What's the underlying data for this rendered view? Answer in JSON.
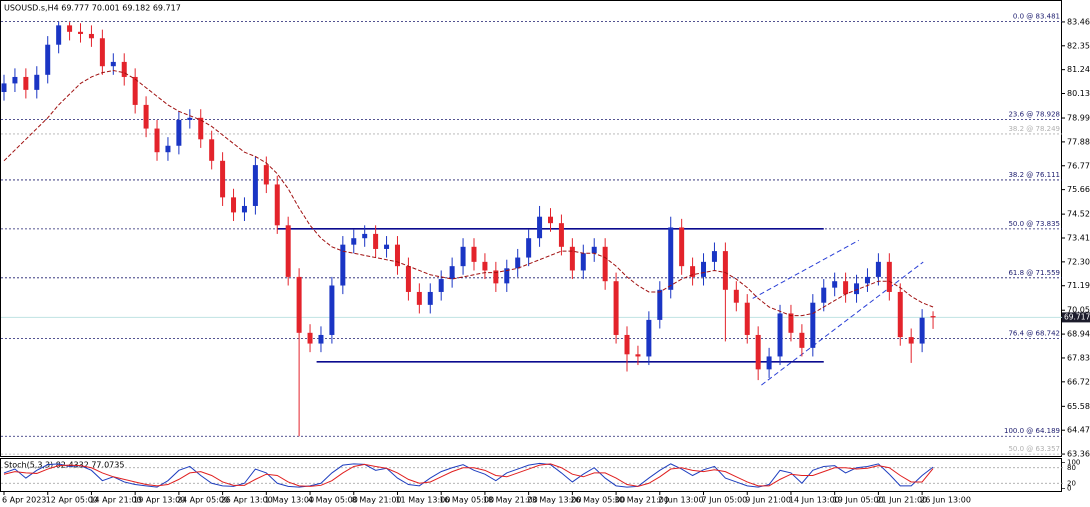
{
  "chart_data": {
    "type": "candlestick",
    "symbol_info": "USOUSD.s,H4  69.777 70.001 69.182 69.717",
    "categories": [
      "6 Apr 2023",
      null,
      null,
      null,
      "12 Apr 05:00",
      null,
      null,
      null,
      "14 Apr 21:00",
      null,
      null,
      null,
      "19 Apr 13:00",
      null,
      null,
      null,
      "24 Apr 05:00",
      null,
      null,
      null,
      "26 Apr 13:00",
      null,
      null,
      null,
      "1 May 13:00",
      null,
      null,
      null,
      "4 May 05:00",
      null,
      null,
      null,
      "8 May 21:00",
      null,
      null,
      null,
      "11 May 13:00",
      null,
      null,
      null,
      "16 May 05:00",
      null,
      null,
      null,
      "18 May 21:00",
      null,
      null,
      null,
      "23 May 13:00",
      null,
      null,
      null,
      "26 May 05:00",
      null,
      null,
      null,
      "30 May 21:00",
      null,
      null,
      null,
      "2 Jun 13:00",
      null,
      null,
      null,
      "7 Jun 05:00",
      null,
      null,
      null,
      "9 Jun 21:00",
      null,
      null,
      null,
      "14 Jun 13:00",
      null,
      null,
      null,
      "19 Jun 05:00",
      null,
      null,
      null,
      "21 Jun 21:00",
      null,
      null,
      null,
      "26 Jun 13:00",
      null
    ],
    "open": [
      80.2,
      80.6,
      80.9,
      80.3,
      81.0,
      82.4,
      83.3,
      83.0,
      82.9,
      82.7,
      81.4,
      81.6,
      80.9,
      79.6,
      78.5,
      77.4,
      77.7,
      78.9,
      79.0,
      78.0,
      77.0,
      75.3,
      74.6,
      74.9,
      76.8,
      75.9,
      74.0,
      71.6,
      69.0,
      68.5,
      68.9,
      71.2,
      73.1,
      73.4,
      73.6,
      72.9,
      73.1,
      72.1,
      70.9,
      70.3,
      70.9,
      71.5,
      72.1,
      73.0,
      72.3,
      71.9,
      71.3,
      72.0,
      72.5,
      73.4,
      74.4,
      74.1,
      73.0,
      71.9,
      72.7,
      73.0,
      71.4,
      68.9,
      68.0,
      67.9,
      69.6,
      71.0,
      73.9,
      72.1,
      71.6,
      72.3,
      72.8,
      71.0,
      70.4,
      68.9,
      67.3,
      67.9,
      69.9,
      69.0,
      68.3,
      70.4,
      71.1,
      71.4,
      70.8,
      71.3,
      71.6,
      72.3,
      70.9,
      68.8,
      68.5,
      69.777
    ],
    "high": [
      81.0,
      81.3,
      81.3,
      81.4,
      82.8,
      83.481,
      83.45,
      83.4,
      83.3,
      83.1,
      82.0,
      82.0,
      81.3,
      80.0,
      78.9,
      78.1,
      79.3,
      79.4,
      79.4,
      78.4,
      77.4,
      75.7,
      75.3,
      77.2,
      77.2,
      76.3,
      74.4,
      72.0,
      69.4,
      69.3,
      71.6,
      73.5,
      73.8,
      74.0,
      74.0,
      73.5,
      73.5,
      72.5,
      71.3,
      71.3,
      71.9,
      72.5,
      73.4,
      73.4,
      72.7,
      72.3,
      72.4,
      72.9,
      73.8,
      74.9,
      74.8,
      74.5,
      73.4,
      73.1,
      73.4,
      73.4,
      71.8,
      69.3,
      68.4,
      70.0,
      71.4,
      74.4,
      74.3,
      72.5,
      72.7,
      73.2,
      73.2,
      71.4,
      70.8,
      69.3,
      68.3,
      70.3,
      70.3,
      69.4,
      70.8,
      71.5,
      71.8,
      71.8,
      71.7,
      72.0,
      72.7,
      72.7,
      71.3,
      69.2,
      70.1,
      70.001
    ],
    "low": [
      79.8,
      80.2,
      79.9,
      79.9,
      80.6,
      82.0,
      82.6,
      82.5,
      82.3,
      81.0,
      81.0,
      80.5,
      79.2,
      78.1,
      77.0,
      77.0,
      77.3,
      78.5,
      77.6,
      76.6,
      74.9,
      74.2,
      74.2,
      74.5,
      75.5,
      73.6,
      71.2,
      64.189,
      68.1,
      68.1,
      68.5,
      70.8,
      72.7,
      73.0,
      72.5,
      72.5,
      71.7,
      70.5,
      69.9,
      69.9,
      70.5,
      71.1,
      71.7,
      71.9,
      71.5,
      70.9,
      70.9,
      71.6,
      72.1,
      73.0,
      73.7,
      72.6,
      71.5,
      71.5,
      72.3,
      71.0,
      68.5,
      67.2,
      67.5,
      67.5,
      69.2,
      70.6,
      71.7,
      71.2,
      71.2,
      71.9,
      68.6,
      70.0,
      68.5,
      66.8,
      66.9,
      67.5,
      68.6,
      67.9,
      67.9,
      70.0,
      70.7,
      70.4,
      70.4,
      70.9,
      71.2,
      70.5,
      68.4,
      67.6,
      68.1,
      69.182
    ],
    "close": [
      80.6,
      80.9,
      80.3,
      81.0,
      82.4,
      83.3,
      83.0,
      82.9,
      82.7,
      81.4,
      81.6,
      80.9,
      79.6,
      78.5,
      77.4,
      77.7,
      78.9,
      79.0,
      78.0,
      77.0,
      75.3,
      74.6,
      74.9,
      76.8,
      75.9,
      74.0,
      71.6,
      69.0,
      68.5,
      68.9,
      71.2,
      73.1,
      73.4,
      73.6,
      72.9,
      73.1,
      72.1,
      70.9,
      70.3,
      70.9,
      71.5,
      72.1,
      73.0,
      72.3,
      71.9,
      71.3,
      72.0,
      72.5,
      73.4,
      74.4,
      74.1,
      73.0,
      71.9,
      72.7,
      73.0,
      71.4,
      68.9,
      68.0,
      67.9,
      69.6,
      71.0,
      73.9,
      72.1,
      71.6,
      72.3,
      72.8,
      71.0,
      70.4,
      68.9,
      67.3,
      67.9,
      69.9,
      69.0,
      68.3,
      70.4,
      71.1,
      71.4,
      70.8,
      71.3,
      71.6,
      72.3,
      70.9,
      68.8,
      68.5,
      69.7,
      69.717
    ],
    "up_color": "#1a35c4",
    "down_color": "#e3232b",
    "ylim": [
      63.27,
      84.34
    ],
    "yticks": [
      {
        "value": 83.46,
        "label": "83.460"
      },
      {
        "value": 82.35,
        "label": "82.350"
      },
      {
        "value": 81.24,
        "label": "81.240"
      },
      {
        "value": 80.13,
        "label": "80.130"
      },
      {
        "value": 78.99,
        "label": "78.990"
      },
      {
        "value": 77.88,
        "label": "77.880"
      },
      {
        "value": 76.77,
        "label": "76.770"
      },
      {
        "value": 75.66,
        "label": "75.660"
      },
      {
        "value": 74.52,
        "label": "74.520"
      },
      {
        "value": 73.41,
        "label": "73.410"
      },
      {
        "value": 72.3,
        "label": "72.300"
      },
      {
        "value": 71.19,
        "label": "71.190"
      },
      {
        "value": 70.05,
        "label": "70.050"
      },
      {
        "value": 68.94,
        "label": "68.940"
      },
      {
        "value": 67.83,
        "label": "67.830"
      },
      {
        "value": 66.72,
        "label": "66.720"
      },
      {
        "value": 65.58,
        "label": "65.580"
      },
      {
        "value": 64.47,
        "label": "64.470"
      },
      {
        "value": 63.36,
        "label": "63.360"
      }
    ],
    "ma": {
      "color": "#a01010",
      "values": [
        77.0,
        77.5,
        78.0,
        78.5,
        79.0,
        79.6,
        80.1,
        80.6,
        80.9,
        81.1,
        81.2,
        81.1,
        80.8,
        80.4,
        80.0,
        79.6,
        79.3,
        79.1,
        78.9,
        78.6,
        78.2,
        77.8,
        77.4,
        77.2,
        76.9,
        76.4,
        75.7,
        74.8,
        74.0,
        73.4,
        73.0,
        72.8,
        72.7,
        72.6,
        72.5,
        72.4,
        72.3,
        72.1,
        71.9,
        71.7,
        71.6,
        71.5,
        71.6,
        71.7,
        71.8,
        71.8,
        71.9,
        72.0,
        72.2,
        72.4,
        72.6,
        72.8,
        72.8,
        72.7,
        72.7,
        72.5,
        72.1,
        71.6,
        71.2,
        70.9,
        70.9,
        71.2,
        71.5,
        71.7,
        71.8,
        71.9,
        71.8,
        71.5,
        71.1,
        70.6,
        70.2,
        70.0,
        69.8,
        69.8,
        69.9,
        70.2,
        70.5,
        70.8,
        71.0,
        71.2,
        71.4,
        71.4,
        71.1,
        70.7,
        70.4,
        70.2
      ]
    },
    "fib_levels": [
      {
        "label": "0.0 @ 83.481",
        "value": 83.481,
        "color": "#1c1c6e"
      },
      {
        "label": "23.6 @ 78.928",
        "value": 78.928,
        "color": "#1c1c6e"
      },
      {
        "label": "38.2 @ 78.249",
        "value": 78.249,
        "color": "#b0b0b0"
      },
      {
        "label": "38.2 @ 76.111",
        "value": 76.111,
        "color": "#1c1c6e"
      },
      {
        "label": "50.0 @ 73.835",
        "value": 73.835,
        "color": "#1c1c6e"
      },
      {
        "label": "61.8 @ 71.559",
        "value": 71.559,
        "color": "#1c1c6e"
      },
      {
        "label": "76.4 @ 68.742",
        "value": 68.742,
        "color": "#1c1c6e"
      },
      {
        "label": "100.0 @ 64.189",
        "value": 64.189,
        "color": "#1c1c6e"
      },
      {
        "label": "50.0 @ 63.357",
        "value": 63.357,
        "color": "#b0b0b0"
      }
    ],
    "h_lines": [
      {
        "y": 73.835,
        "x": [
          25,
          75
        ]
      },
      {
        "y": 67.65,
        "x": [
          28.6,
          75
        ]
      }
    ],
    "channel_lines": [
      {
        "x": [
          68.5,
          78.2
        ],
        "y": [
          70.6,
          73.3
        ]
      },
      {
        "x": [
          69.3,
          84.1
        ],
        "y": [
          66.57,
          72.29
        ]
      }
    ],
    "current_price": 69.717,
    "stoch": {
      "title": "Stoch(5,3,3) 82.4332 77.0735",
      "ylim": [
        -10,
        110
      ],
      "yticks": [
        0,
        20,
        80,
        100
      ],
      "series": [
        {
          "color": "#1f3fbf",
          "values": [
            60,
            75,
            40,
            70,
            92,
            95,
            85,
            88,
            70,
            30,
            45,
            25,
            15,
            10,
            5,
            30,
            70,
            85,
            50,
            20,
            10,
            8,
            20,
            75,
            60,
            20,
            8,
            5,
            10,
            20,
            60,
            90,
            95,
            93,
            70,
            78,
            40,
            15,
            10,
            40,
            65,
            80,
            92,
            70,
            55,
            30,
            60,
            75,
            90,
            97,
            92,
            60,
            25,
            55,
            80,
            40,
            10,
            5,
            8,
            40,
            70,
            95,
            75,
            50,
            72,
            85,
            40,
            25,
            10,
            5,
            15,
            70,
            60,
            20,
            70,
            85,
            88,
            60,
            80,
            85,
            95,
            55,
            10,
            10,
            50,
            82.4332
          ]
        },
        {
          "color": "#e02020",
          "values": [
            55,
            65,
            60,
            58,
            75,
            88,
            90,
            88,
            80,
            60,
            45,
            35,
            25,
            15,
            10,
            15,
            35,
            60,
            65,
            50,
            25,
            12,
            12,
            35,
            55,
            50,
            25,
            10,
            8,
            12,
            30,
            60,
            85,
            93,
            85,
            78,
            60,
            35,
            20,
            25,
            45,
            65,
            80,
            80,
            70,
            50,
            45,
            60,
            75,
            90,
            95,
            80,
            55,
            45,
            60,
            60,
            40,
            15,
            8,
            20,
            45,
            75,
            80,
            70,
            65,
            72,
            65,
            45,
            25,
            10,
            10,
            35,
            55,
            50,
            50,
            65,
            80,
            80,
            75,
            78,
            88,
            80,
            50,
            25,
            25,
            77.0735
          ]
        }
      ]
    }
  }
}
